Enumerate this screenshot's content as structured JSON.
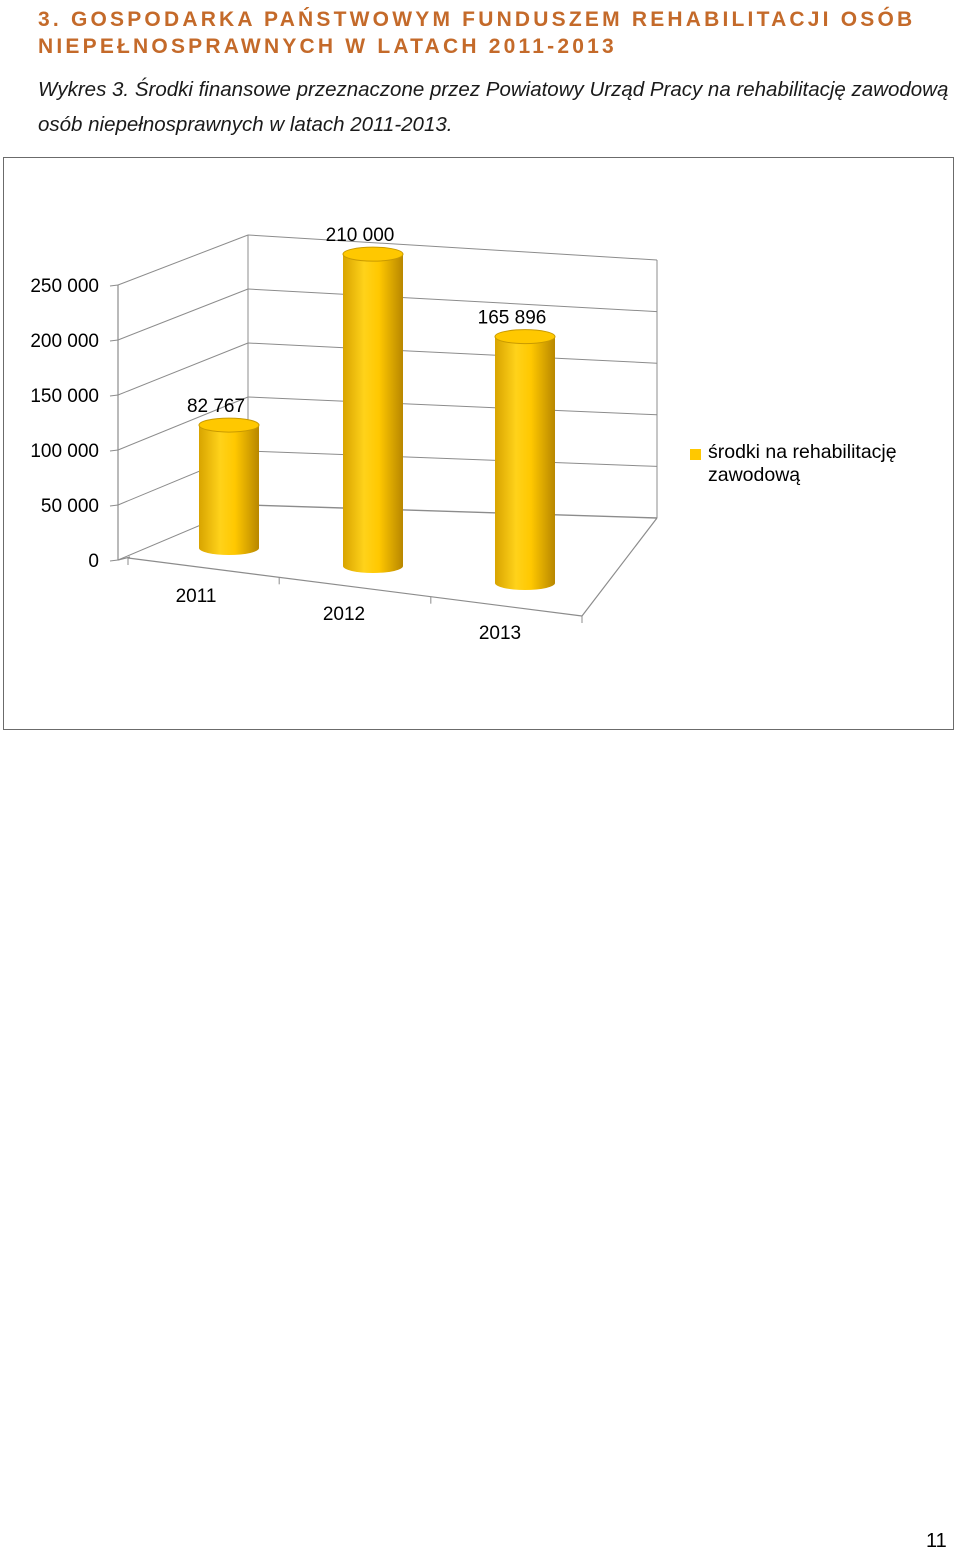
{
  "heading": "3. GOSPODARKA PAŃSTWOWYM FUNDUSZEM REHABILITACJI OSÓB NIEPEŁNOSPRAWNYCH W LATACH 2011-2013",
  "caption": "Wykres 3. Środki finansowe przeznaczone przez Powiatowy Urząd Pracy na rehabilitację zawodową osób niepełnosprawnych w latach 2011-2013.",
  "page_number": "11",
  "colors": {
    "heading": "#c46a2a",
    "bar": "#ffc800",
    "bar_dark": "#c99a00",
    "gridline": "#8c8c8c"
  },
  "chart_data": {
    "type": "bar",
    "style": "3d-cylinder",
    "categories": [
      "2011",
      "2012",
      "2013"
    ],
    "series": [
      {
        "name": "środki na rehabilitację zawodową",
        "values": [
          82767,
          210000,
          165896
        ],
        "data_labels": [
          "82 767",
          "210 000",
          "165 896"
        ]
      }
    ],
    "ylim": [
      0,
      250000
    ],
    "y_ticks": [
      0,
      50000,
      100000,
      150000,
      200000,
      250000
    ],
    "y_tick_labels": [
      "0",
      "50 000",
      "100 000",
      "150 000",
      "200 000",
      "250 000"
    ],
    "grid": true,
    "legend_position": "right",
    "title": "",
    "xlabel": "",
    "ylabel": ""
  }
}
